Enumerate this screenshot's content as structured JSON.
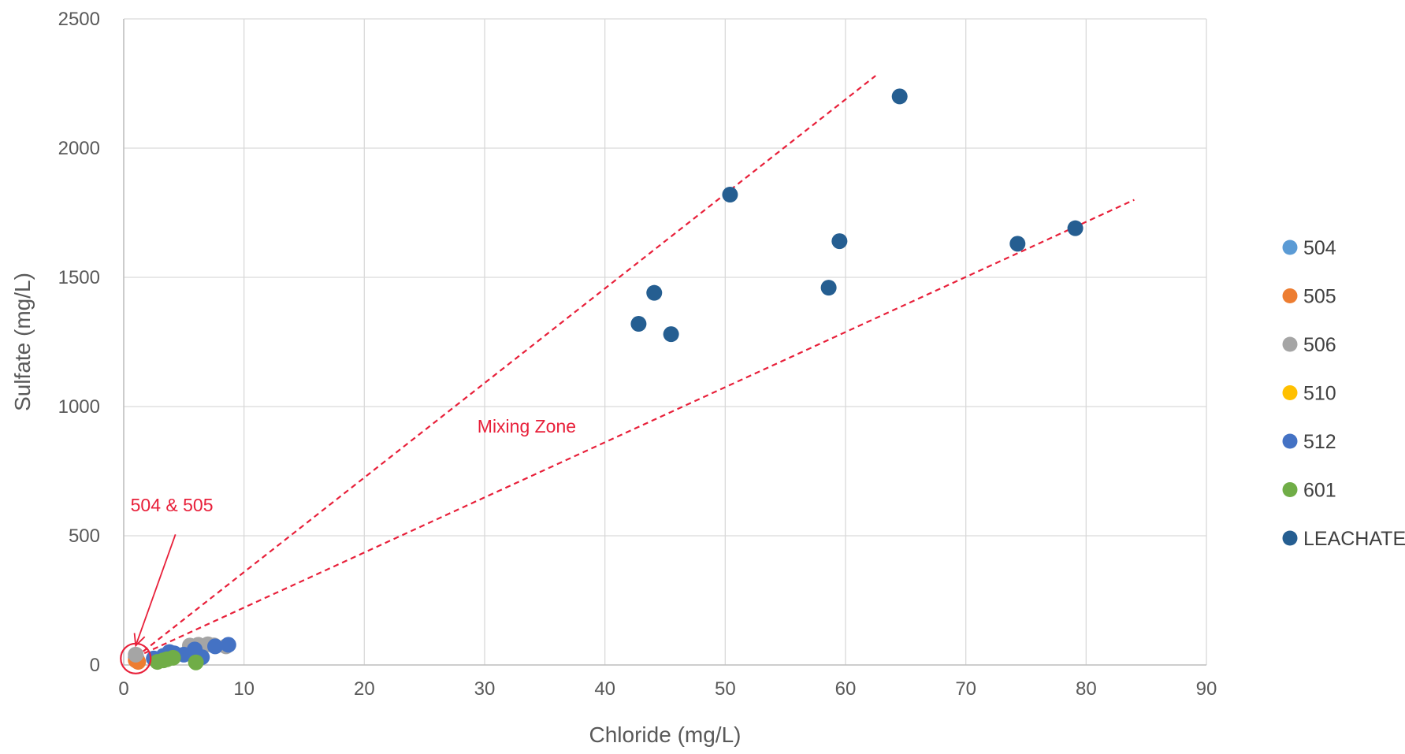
{
  "chart_data": {
    "type": "scatter",
    "title": "",
    "xlabel": "Chloride (mg/L)",
    "ylabel": "Sulfate (mg/L)",
    "xlim": [
      0,
      90
    ],
    "ylim": [
      0,
      2500
    ],
    "x_ticks": [
      "0",
      "10",
      "20",
      "30",
      "40",
      "50",
      "60",
      "70",
      "80",
      "90"
    ],
    "y_ticks": [
      "0",
      "500",
      "1000",
      "1500",
      "2000",
      "2500"
    ],
    "grid": true,
    "legend_position": "right",
    "series": [
      {
        "name": "504",
        "color": "#5b9bd5",
        "points": [
          [
            1.0,
            30
          ],
          [
            1.1,
            22
          ]
        ]
      },
      {
        "name": "505",
        "color": "#ed7d31",
        "points": [
          [
            1.0,
            18
          ],
          [
            1.2,
            12
          ]
        ]
      },
      {
        "name": "506",
        "color": "#a5a5a5",
        "points": [
          [
            1.0,
            40
          ],
          [
            5.5,
            75
          ],
          [
            6.2,
            78
          ],
          [
            7.0,
            80
          ],
          [
            7.5,
            76
          ],
          [
            8.5,
            72
          ]
        ]
      },
      {
        "name": "510",
        "color": "#ffc000",
        "points": []
      },
      {
        "name": "512",
        "color": "#4472c4",
        "points": [
          [
            2.5,
            25
          ],
          [
            3.3,
            35
          ],
          [
            3.8,
            50
          ],
          [
            4.2,
            45
          ],
          [
            5.0,
            40
          ],
          [
            5.9,
            60
          ],
          [
            6.5,
            30
          ],
          [
            7.6,
            72
          ],
          [
            8.7,
            78
          ]
        ]
      },
      {
        "name": "601",
        "color": "#70ad47",
        "points": [
          [
            2.8,
            12
          ],
          [
            3.3,
            18
          ],
          [
            3.6,
            22
          ],
          [
            4.1,
            28
          ],
          [
            6.0,
            10
          ]
        ]
      },
      {
        "name": "LEACHATE",
        "color": "#255e91",
        "points": [
          [
            42.8,
            1320
          ],
          [
            44.1,
            1440
          ],
          [
            45.5,
            1280
          ],
          [
            50.4,
            1820
          ],
          [
            58.6,
            1460
          ],
          [
            59.5,
            1640
          ],
          [
            64.5,
            2200
          ],
          [
            74.3,
            1630
          ],
          [
            79.1,
            1690
          ]
        ]
      }
    ],
    "annotations": {
      "mixing_zone_label": "Mixing Zone",
      "callout_label": "504 & 505",
      "color": "#e8203a",
      "upper_line": [
        [
          1.0,
          30
        ],
        [
          62.5,
          2280
        ]
      ],
      "lower_line": [
        [
          1.0,
          30
        ],
        [
          84.0,
          1800
        ]
      ],
      "arrow_from": [
        4.3,
        505
      ],
      "arrow_to": [
        1.0,
        75
      ],
      "mixing_zone_at": [
        33.5,
        900
      ],
      "callout_at": [
        4.0,
        595
      ],
      "circle_at": [
        1.0,
        25
      ]
    }
  }
}
